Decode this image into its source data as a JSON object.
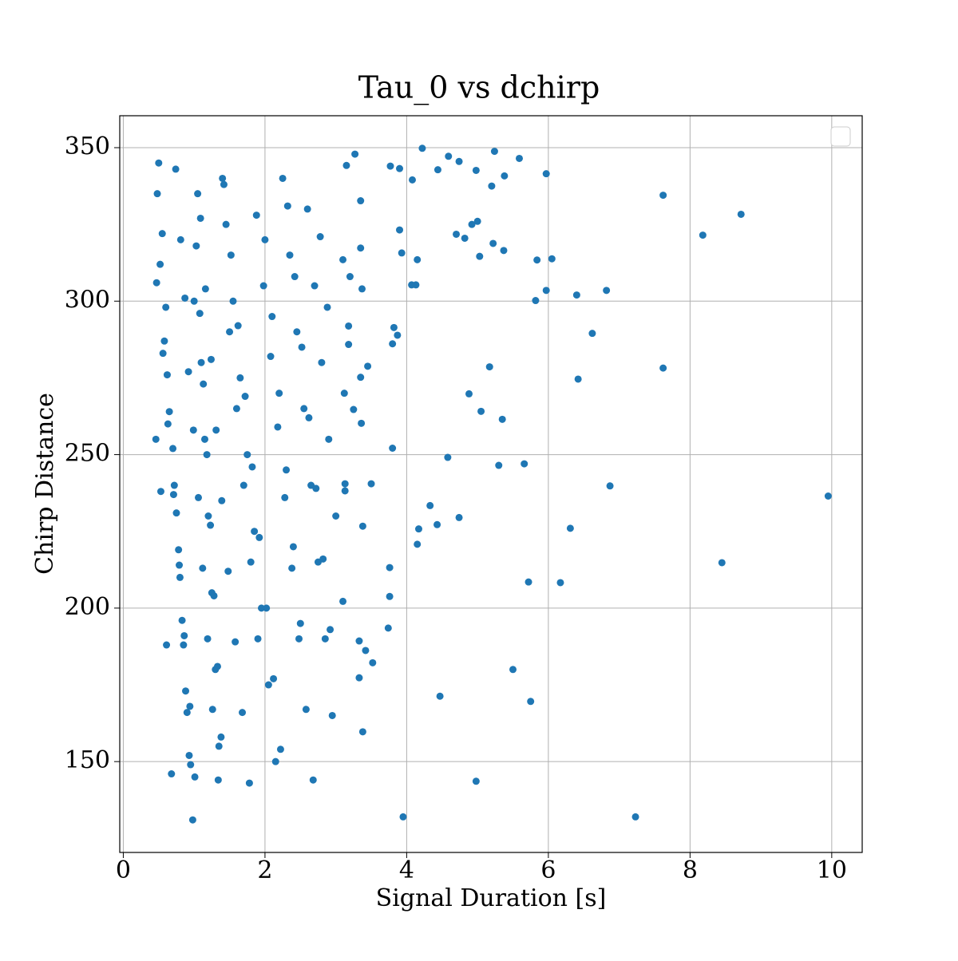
{
  "chart_data": {
    "type": "scatter",
    "title": "Tau_0 vs dchirp",
    "x_label": "Signal Duration [s]",
    "y_label": "Chirp Distance",
    "color": "#1f77b4",
    "grid": true,
    "xlim": [
      -0.05,
      10.43
    ],
    "ylim": [
      120.4,
      360.4
    ],
    "xticks": [
      0,
      2,
      4,
      6,
      8,
      10
    ],
    "yticks": [
      150,
      200,
      250,
      300,
      350
    ],
    "x": [
      9.95,
      8.72,
      8.18,
      8.45,
      7.62,
      7.62,
      7.23,
      6.87,
      6.82,
      6.62,
      6.42,
      6.4,
      6.31,
      6.17,
      6.05,
      5.97,
      5.97,
      5.84,
      5.82,
      5.75,
      5.72,
      5.66,
      5.59,
      5.5,
      5.37,
      5.38,
      5.35,
      5.3,
      5.24,
      5.22,
      5.2,
      5.17,
      5.03,
      5.05,
      5.0,
      4.98,
      4.98,
      4.92,
      4.88,
      4.82,
      4.74,
      4.7,
      4.74,
      4.58,
      4.59,
      4.47,
      4.44,
      4.43,
      4.33,
      4.22,
      4.17,
      4.15,
      4.15,
      4.13,
      4.07,
      4.08,
      3.95,
      3.93,
      3.9,
      3.9,
      3.87,
      3.82,
      3.8,
      3.8,
      3.77,
      3.76,
      3.76,
      3.74,
      3.5,
      3.52,
      3.45,
      3.42,
      3.38,
      3.36,
      3.37,
      3.35,
      3.35,
      3.35,
      3.33,
      3.33,
      3.38,
      3.27,
      3.25,
      3.2,
      3.18,
      3.18,
      3.15,
      3.13,
      3.13,
      3.12,
      3.1,
      3.1,
      0.5,
      0.55,
      0.6,
      0.62,
      0.7,
      0.75,
      0.8,
      0.85,
      0.9,
      0.95,
      1.0,
      1.05,
      1.1,
      1.15,
      1.2,
      1.25,
      1.3,
      1.35,
      1.4,
      1.5,
      1.6,
      1.7,
      1.8,
      1.9,
      2.0,
      2.1,
      2.2,
      2.3,
      2.4,
      2.5,
      2.6,
      2.7,
      2.8,
      2.9,
      3.0,
      0.48,
      0.52,
      0.58,
      0.65,
      0.72,
      0.78,
      0.83,
      0.88,
      0.93,
      0.98,
      1.03,
      1.08,
      1.13,
      1.18,
      1.23,
      1.28,
      1.33,
      1.38,
      1.45,
      1.55,
      1.65,
      1.75,
      1.85,
      1.95,
      2.05,
      2.15,
      2.25,
      2.35,
      2.45,
      2.55,
      2.65,
      2.75,
      2.85,
      2.95,
      0.46,
      0.53,
      0.61,
      0.68,
      0.74,
      0.81,
      0.87,
      0.92,
      0.99,
      1.06,
      1.12,
      1.19,
      1.26,
      1.34,
      1.42,
      1.52,
      1.62,
      1.72,
      1.82,
      1.92,
      2.02,
      2.12,
      2.22,
      2.32,
      2.42,
      2.52,
      2.62,
      2.72,
      2.82,
      2.92,
      0.47,
      0.56,
      0.63,
      0.71,
      0.79,
      0.86,
      0.94,
      1.01,
      1.09,
      1.16,
      1.24,
      1.31,
      1.39,
      1.48,
      1.58,
      1.68,
      1.78,
      1.88,
      1.98,
      2.08,
      2.18,
      2.28,
      2.38,
      2.48,
      2.58,
      2.68,
      2.78,
      2.88
    ],
    "y": [
      236.5,
      328.3,
      321.5,
      214.8,
      334.5,
      278.2,
      132,
      239.8,
      303.5,
      289.5,
      274.6,
      302,
      226,
      208.3,
      313.8,
      341.5,
      303.5,
      313.4,
      300.2,
      169.6,
      208.5,
      247,
      346.5,
      180,
      316.5,
      340.8,
      261.5,
      246.5,
      348.8,
      318.8,
      337.5,
      278.6,
      314.6,
      264.1,
      326,
      143.6,
      342.6,
      325,
      269.8,
      320.5,
      229.5,
      321.8,
      345.5,
      249.1,
      347.2,
      171.3,
      342.8,
      227.2,
      233.4,
      349.8,
      225.8,
      220.8,
      313.5,
      305.3,
      305.3,
      339.5,
      132,
      315.7,
      343.2,
      323.2,
      288.9,
      291.4,
      286.1,
      252.1,
      344,
      213.2,
      203.8,
      193.5,
      240.5,
      182.2,
      278.8,
      186.2,
      226.7,
      260.2,
      304,
      332.7,
      317.3,
      275.2,
      189.3,
      177.3,
      159.7,
      347.9,
      264.7,
      308,
      291.9,
      285.9,
      344.2,
      238.2,
      240.5,
      270,
      313.5,
      202.2,
      345,
      322,
      298,
      276,
      252,
      231,
      210,
      188,
      166,
      149,
      300,
      335,
      280,
      255,
      230,
      205,
      180,
      155,
      340,
      290,
      265,
      240,
      215,
      190,
      320,
      295,
      270,
      245,
      220,
      195,
      330,
      305,
      280,
      255,
      230,
      335,
      312,
      287,
      264,
      240,
      219,
      196,
      173,
      152,
      131,
      318,
      296,
      273,
      250,
      227,
      204,
      181,
      158,
      325,
      300,
      275,
      250,
      225,
      200,
      175,
      150,
      340,
      315,
      290,
      265,
      240,
      215,
      190,
      165,
      255,
      238,
      188,
      146,
      343,
      320,
      301,
      277,
      258,
      236,
      213,
      190,
      167,
      144,
      338,
      315,
      292,
      269,
      246,
      223,
      200,
      177,
      154,
      331,
      308,
      285,
      262,
      239,
      216,
      193,
      306,
      283,
      260,
      237,
      214,
      191,
      168,
      145,
      327,
      304,
      281,
      258,
      235,
      212,
      189,
      166,
      143,
      328,
      305,
      282,
      259,
      236,
      213,
      190,
      167,
      144,
      321,
      298
    ]
  }
}
